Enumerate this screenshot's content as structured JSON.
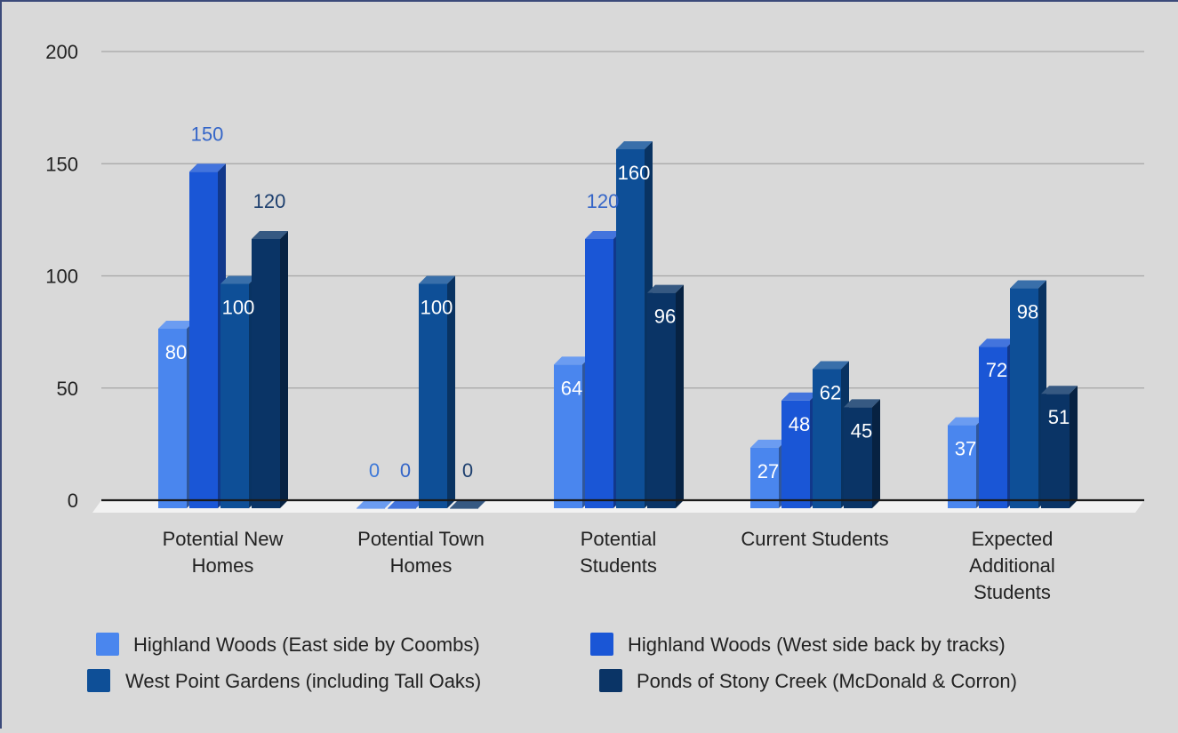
{
  "chart_data": {
    "type": "bar",
    "title": "",
    "xlabel": "",
    "ylabel": "",
    "ylim": [
      0,
      200
    ],
    "yticks": [
      0,
      50,
      100,
      150,
      200
    ],
    "grid": true,
    "legend_position": "bottom",
    "categories": [
      [
        "Potential New",
        "Homes"
      ],
      [
        "Potential Town",
        "Homes"
      ],
      [
        "Potential",
        "Students"
      ],
      [
        "Current Students"
      ],
      [
        "Expected",
        "Additional",
        "Students"
      ]
    ],
    "series": [
      {
        "name": "Highland Woods (East side by Coombs)",
        "color": "#4a86ee",
        "values": [
          80,
          0,
          64,
          27,
          37
        ],
        "label_color": [
          "#ffffff",
          "#3d78d8",
          "#ffffff",
          "#ffffff",
          "#ffffff"
        ]
      },
      {
        "name": "Highland Woods (West side back by tracks)",
        "color": "#1a56d6",
        "values": [
          150,
          0,
          120,
          48,
          72
        ],
        "label_color": [
          "#3465c8",
          "#3465c8",
          "#3465c8",
          "#ffffff",
          "#ffffff"
        ]
      },
      {
        "name": "West Point Gardens (including Tall Oaks)",
        "color": "#0e4f97",
        "values": [
          100,
          100,
          160,
          62,
          98
        ],
        "label_color": [
          "#ffffff",
          "#ffffff",
          "#ffffff",
          "#ffffff",
          "#ffffff"
        ]
      },
      {
        "name": "Ponds of Stony Creek (McDonald & Corron)",
        "color": "#0a3466",
        "values": [
          120,
          0,
          96,
          45,
          51
        ],
        "label_color": [
          "#1d3f6e",
          "#1d3f6e",
          "#ffffff",
          "#ffffff",
          "#ffffff"
        ]
      }
    ]
  }
}
